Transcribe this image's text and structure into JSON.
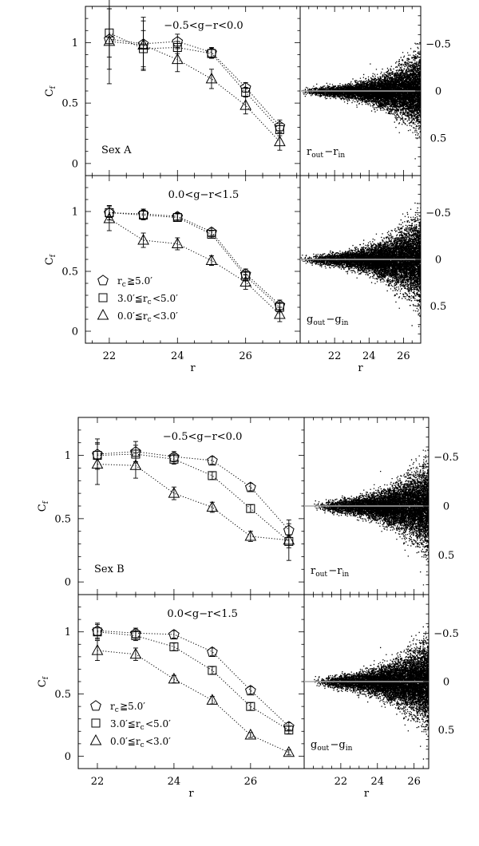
{
  "chart_data": [
    {
      "type": "line",
      "figure": "Sex A",
      "panel_label": "Sex A",
      "color_label": "−0.5<g−r<0.0",
      "ylabel": "C_f",
      "xlabel": "",
      "xlim": [
        21.3,
        27.6
      ],
      "ylim": [
        -0.1,
        1.3
      ],
      "x_ticks": [
        "22",
        "24",
        "26"
      ],
      "y_ticks": [
        "0",
        "0.5",
        "1"
      ],
      "x": [
        22,
        23,
        24,
        25,
        26,
        27
      ],
      "series": [
        {
          "name": "r_c≧5.0′",
          "marker": "pentagon",
          "values": [
            1.03,
            0.99,
            1.01,
            0.92,
            0.63,
            0.31
          ],
          "errors": [
            0.25,
            0.22,
            0.06,
            0.04,
            0.04,
            0.05
          ]
        },
        {
          "name": "3.0′≦r_c<5.0′",
          "marker": "square",
          "values": [
            1.08,
            0.95,
            0.96,
            0.91,
            0.59,
            0.28
          ],
          "errors": [
            0.2,
            0.15,
            0.05,
            0.04,
            0.04,
            0.05
          ]
        },
        {
          "name": "0.0′≦r_c<3.0′",
          "marker": "triangle",
          "values": [
            1.01,
            0.98,
            0.86,
            0.7,
            0.48,
            0.18
          ],
          "errors": [
            0.35,
            0.2,
            0.1,
            0.08,
            0.07,
            0.07
          ]
        }
      ]
    },
    {
      "type": "scatter",
      "figure": "Sex A",
      "panel_label": "r_out−r_in",
      "ylim": [
        0.9,
        -0.9
      ],
      "xlim": [
        20.0,
        27.0
      ],
      "y_ticks": [
        "−0.5",
        "0",
        "0.5"
      ],
      "x_ticks": [],
      "x_range": [
        20.0,
        27.0
      ],
      "spread_scale": 0.05,
      "density": "dense increasing with magnitude"
    },
    {
      "type": "line",
      "figure": "Sex A",
      "color_label": "0.0<g−r<1.5",
      "ylabel": "C_f",
      "xlabel": "r",
      "xlim": [
        21.3,
        27.6
      ],
      "ylim": [
        -0.1,
        1.3
      ],
      "x_ticks": [
        "22",
        "24",
        "26"
      ],
      "y_ticks": [
        "0",
        "0.5",
        "1"
      ],
      "x": [
        22,
        23,
        24,
        25,
        26,
        27
      ],
      "legend": [
        {
          "marker": "pentagon",
          "label": "r_c≧5.0′"
        },
        {
          "marker": "square",
          "label": "3.0′≦r_c<5.0′"
        },
        {
          "marker": "triangle",
          "label": "0.0′≦r_c<3.0′"
        }
      ],
      "series": [
        {
          "name": "r_c≧5.0′",
          "marker": "pentagon",
          "values": [
            0.99,
            0.98,
            0.96,
            0.83,
            0.48,
            0.22
          ],
          "errors": [
            0.06,
            0.04,
            0.03,
            0.03,
            0.04,
            0.04
          ]
        },
        {
          "name": "3.0′≦r_c<5.0′",
          "marker": "square",
          "values": [
            0.99,
            0.97,
            0.95,
            0.81,
            0.46,
            0.2
          ],
          "errors": [
            0.06,
            0.04,
            0.03,
            0.03,
            0.04,
            0.04
          ]
        },
        {
          "name": "0.0′≦r_c<3.0′",
          "marker": "triangle",
          "values": [
            0.94,
            0.76,
            0.73,
            0.59,
            0.41,
            0.14
          ],
          "errors": [
            0.1,
            0.06,
            0.05,
            0.04,
            0.06,
            0.06
          ]
        }
      ]
    },
    {
      "type": "scatter",
      "figure": "Sex A",
      "panel_label": "g_out−g_in",
      "xlabel": "r",
      "ylim": [
        0.9,
        -0.9
      ],
      "xlim": [
        20.0,
        27.0
      ],
      "y_ticks": [
        "−0.5",
        "0",
        "0.5"
      ],
      "x_ticks": [
        "22",
        "24",
        "26"
      ],
      "x_range": [
        20.0,
        27.0
      ],
      "spread_scale": 0.06,
      "density": "dense increasing with magnitude"
    },
    {
      "type": "line",
      "figure": "Sex B",
      "panel_label": "Sex B",
      "color_label": "−0.5<g−r<0.0",
      "ylabel": "C_f",
      "xlabel": "",
      "xlim": [
        21.5,
        27.4
      ],
      "ylim": [
        -0.1,
        1.3
      ],
      "x_ticks": [
        "22",
        "24",
        "26"
      ],
      "y_ticks": [
        "0",
        "0.5",
        "1"
      ],
      "x": [
        22,
        23,
        24,
        25,
        26,
        27
      ],
      "series": [
        {
          "name": "r_c≧5.0′",
          "marker": "pentagon",
          "values": [
            1.01,
            1.03,
            0.99,
            0.96,
            0.75,
            0.41
          ],
          "errors": [
            0.12,
            0.08,
            0.04,
            0.03,
            0.03,
            0.05
          ]
        },
        {
          "name": "3.0′≦r_c<5.0′",
          "marker": "square",
          "values": [
            1.0,
            1.01,
            0.97,
            0.84,
            0.58,
            0.32
          ],
          "errors": [
            0.1,
            0.07,
            0.04,
            0.03,
            0.03,
            0.05
          ]
        },
        {
          "name": "0.0′≦r_c<3.0′",
          "marker": "triangle",
          "values": [
            0.93,
            0.92,
            0.7,
            0.59,
            0.36,
            0.33
          ],
          "errors": [
            0.16,
            0.1,
            0.05,
            0.04,
            0.04,
            0.16
          ]
        }
      ]
    },
    {
      "type": "scatter",
      "figure": "Sex B",
      "panel_label": "r_out−r_in",
      "ylim": [
        0.9,
        -0.9
      ],
      "xlim": [
        20.0,
        26.8
      ],
      "y_ticks": [
        "−0.5",
        "0",
        "0.5"
      ],
      "x_ticks": [],
      "x_range": [
        20.5,
        26.8
      ],
      "spread_scale": 0.06,
      "density": "dense increasing with magnitude"
    },
    {
      "type": "line",
      "figure": "Sex B",
      "color_label": "0.0<g−r<1.5",
      "ylabel": "C_f",
      "xlabel": "r",
      "xlim": [
        21.5,
        27.4
      ],
      "ylim": [
        -0.1,
        1.3
      ],
      "x_ticks": [
        "22",
        "24",
        "26"
      ],
      "y_ticks": [
        "0",
        "0.5",
        "1"
      ],
      "x": [
        22,
        23,
        24,
        25,
        26,
        27
      ],
      "legend": [
        {
          "marker": "pentagon",
          "label": "r_c≧5.0′"
        },
        {
          "marker": "square",
          "label": "3.0′≦r_c<5.0′"
        },
        {
          "marker": "triangle",
          "label": "0.0′≦r_c<3.0′"
        }
      ],
      "series": [
        {
          "name": "r_c≧5.0′",
          "marker": "pentagon",
          "values": [
            1.01,
            0.99,
            0.98,
            0.84,
            0.53,
            0.24
          ],
          "errors": [
            0.06,
            0.04,
            0.03,
            0.03,
            0.03,
            0.03
          ]
        },
        {
          "name": "3.0′≦r_c<5.0′",
          "marker": "square",
          "values": [
            1.0,
            0.97,
            0.88,
            0.69,
            0.4,
            0.21
          ],
          "errors": [
            0.06,
            0.04,
            0.03,
            0.03,
            0.03,
            0.03
          ]
        },
        {
          "name": "0.0′≦r_c<3.0′",
          "marker": "triangle",
          "values": [
            0.85,
            0.82,
            0.62,
            0.45,
            0.17,
            0.03
          ],
          "errors": [
            0.08,
            0.05,
            0.03,
            0.03,
            0.02,
            0.02
          ]
        }
      ]
    },
    {
      "type": "scatter",
      "figure": "Sex B",
      "panel_label": "g_out−g_in",
      "xlabel": "r",
      "ylim": [
        0.9,
        -0.9
      ],
      "xlim": [
        20.0,
        26.8
      ],
      "y_ticks": [
        "−0.5",
        "0",
        "0.5"
      ],
      "x_ticks": [
        "22",
        "24",
        "26"
      ],
      "x_range": [
        20.5,
        26.8
      ],
      "spread_scale": 0.06,
      "density": "dense increasing with magnitude"
    }
  ]
}
